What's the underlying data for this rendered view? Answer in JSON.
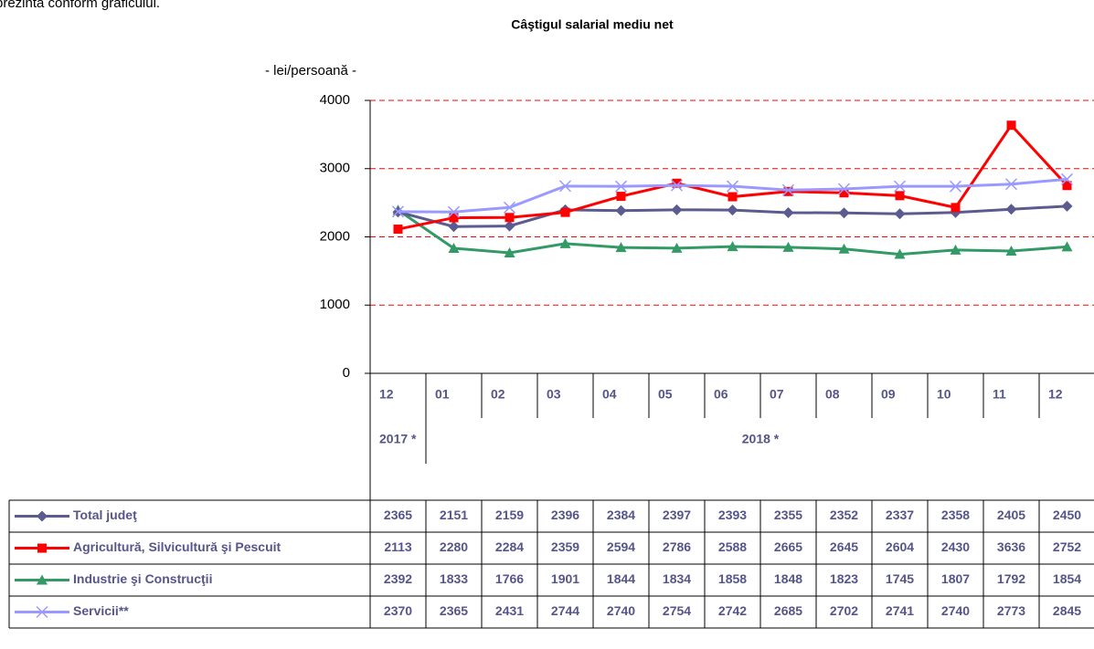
{
  "intro": "prezintă conform graficului.",
  "chart_data": {
    "type": "line",
    "title": "Câştigul salarial mediu net",
    "y_label": "- lei/persoană -",
    "categories": [
      "12",
      "01",
      "02",
      "03",
      "04",
      "05",
      "06",
      "07",
      "08",
      "09",
      "10",
      "11",
      "12"
    ],
    "year_labels": [
      "2017 *",
      "2018 *"
    ],
    "ylim": [
      0,
      4000
    ],
    "yticks": [
      0,
      1000,
      2000,
      3000,
      4000
    ],
    "grid": true,
    "grid_color": "#ff0000",
    "series": [
      {
        "name": "Total judeţ",
        "color": "#5b5b8f",
        "marker": "diamond",
        "values": [
          2365,
          2151,
          2159,
          2396,
          2384,
          2397,
          2393,
          2355,
          2352,
          2337,
          2358,
          2405,
          2450
        ]
      },
      {
        "name": "Agricultură, Silvicultură şi Pescuit",
        "color": "#ff0000",
        "marker": "square",
        "values": [
          2113,
          2280,
          2284,
          2359,
          2594,
          2786,
          2588,
          2665,
          2645,
          2604,
          2430,
          3636,
          2752
        ]
      },
      {
        "name": "Industrie şi Construcţii",
        "color": "#339966",
        "marker": "triangle",
        "values": [
          2392,
          1833,
          1766,
          1901,
          1844,
          1834,
          1858,
          1848,
          1823,
          1745,
          1807,
          1792,
          1854
        ]
      },
      {
        "name": "Servicii**",
        "color": "#9999ff",
        "marker": "x",
        "values": [
          2370,
          2365,
          2431,
          2744,
          2740,
          2754,
          2742,
          2685,
          2702,
          2741,
          2740,
          2773,
          2845
        ]
      }
    ]
  }
}
